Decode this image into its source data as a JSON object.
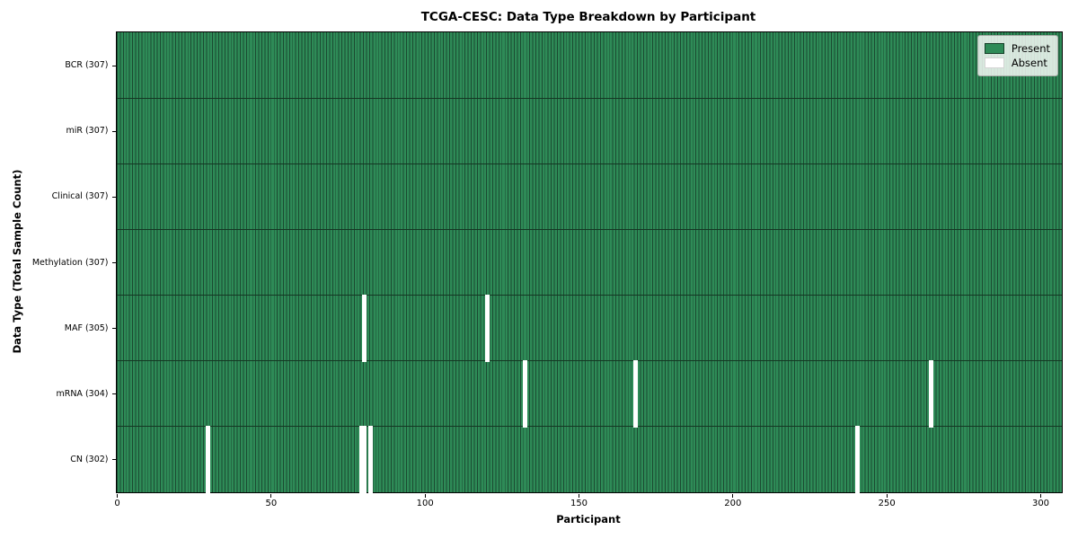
{
  "chart_data": {
    "type": "heatmap",
    "title": "TCGA-CESC: Data Type Breakdown by Participant",
    "xlabel": "Participant",
    "ylabel": "Data Type (Total Sample Count)",
    "n_participants": 307,
    "xlim": [
      0,
      307
    ],
    "x_ticks": [
      0,
      50,
      100,
      150,
      200,
      250,
      300
    ],
    "grid": false,
    "rows": [
      {
        "name": "BCR",
        "label": "BCR (307)",
        "total_sample_count": 307,
        "absent_participants": []
      },
      {
        "name": "miR",
        "label": "miR (307)",
        "total_sample_count": 307,
        "absent_participants": []
      },
      {
        "name": "Clinical",
        "label": "Clinical (307)",
        "total_sample_count": 307,
        "absent_participants": []
      },
      {
        "name": "Methylation",
        "label": "Methylation (307)",
        "total_sample_count": 307,
        "absent_participants": []
      },
      {
        "name": "MAF",
        "label": "MAF (305)",
        "total_sample_count": 305,
        "absent_participants": [
          80,
          120
        ]
      },
      {
        "name": "mRNA",
        "label": "mRNA (304)",
        "total_sample_count": 304,
        "absent_participants": [
          132,
          168,
          264
        ]
      },
      {
        "name": "CN",
        "label": "CN (302)",
        "total_sample_count": 302,
        "absent_participants": [
          29,
          79,
          80,
          82,
          240
        ]
      }
    ],
    "legend": {
      "position": "upper right",
      "entries": [
        {
          "label": "Present",
          "color": "#2e8b57"
        },
        {
          "label": "Absent",
          "color": "#ffffff"
        }
      ]
    },
    "colors": {
      "present": "#2e8b57",
      "absent": "#ffffff",
      "bar_edge": "#1b4a31",
      "row_divider": "#143723",
      "plot_border": "#000000"
    }
  }
}
